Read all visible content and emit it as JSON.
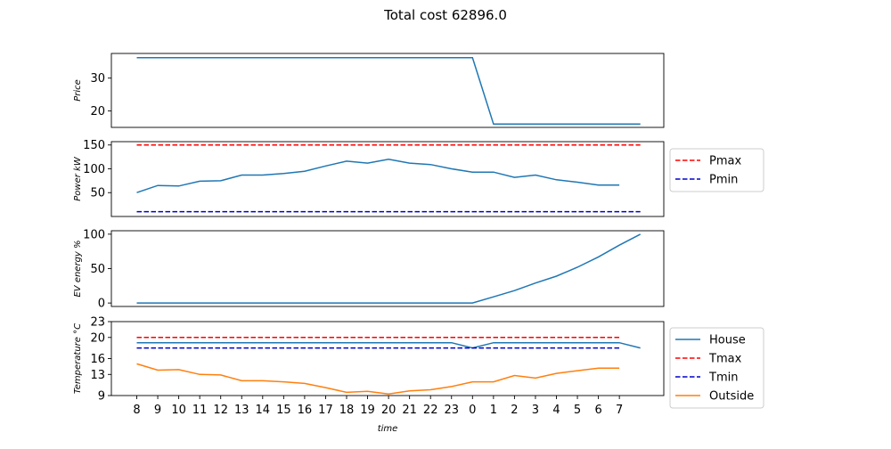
{
  "figure": {
    "suptitle": "Total cost 62896.0",
    "xlabel": "time"
  },
  "x_ticks": [
    "8",
    "9",
    "10",
    "11",
    "12",
    "13",
    "14",
    "15",
    "16",
    "17",
    "18",
    "19",
    "20",
    "21",
    "22",
    "23",
    "0",
    "1",
    "2",
    "3",
    "4",
    "5",
    "6",
    "7"
  ],
  "colors": {
    "blue": "#1f77b4",
    "orange": "#ff7f0e",
    "red_dashed": "#ff0000",
    "blue_dashed": "#0000cc",
    "axes": "#000000"
  },
  "chart_data": [
    {
      "type": "line",
      "id": "price",
      "ylabel": "Price",
      "ylim": [
        15,
        37.5
      ],
      "yticks": [
        20,
        30
      ],
      "series": [
        {
          "color": "#1f77b4",
          "dash": false,
          "values": [
            36.2,
            36.2,
            36.2,
            36.2,
            36.2,
            36.2,
            36.2,
            36.2,
            36.2,
            36.2,
            36.2,
            36.2,
            36.2,
            36.2,
            36.2,
            36.2,
            36.2,
            16,
            16,
            16,
            16,
            16,
            16,
            16,
            16
          ]
        }
      ]
    },
    {
      "type": "line",
      "id": "power",
      "ylabel": "Power   kW",
      "ylim": [
        0,
        157
      ],
      "yticks": [
        50,
        100,
        150
      ],
      "legend": "outside-right",
      "series": [
        {
          "color": "#1f77b4",
          "dash": false,
          "values": [
            50,
            65,
            64,
            74,
            75,
            87,
            87,
            90,
            95,
            106,
            116,
            112,
            120,
            112,
            109,
            100,
            93,
            93,
            82,
            87,
            77,
            72,
            66,
            66
          ]
        },
        {
          "name": "Pmax",
          "color": "#ff0000",
          "dash": true,
          "values": [
            150,
            150,
            150,
            150,
            150,
            150,
            150,
            150,
            150,
            150,
            150,
            150,
            150,
            150,
            150,
            150,
            150,
            150,
            150,
            150,
            150,
            150,
            150,
            150,
            150
          ]
        },
        {
          "name": "Pmin",
          "color": "#0000cc",
          "dash": true,
          "values": [
            10,
            10,
            10,
            10,
            10,
            10,
            10,
            10,
            10,
            10,
            10,
            10,
            10,
            10,
            10,
            10,
            10,
            10,
            10,
            10,
            10,
            10,
            10,
            10,
            10
          ]
        }
      ]
    },
    {
      "type": "line",
      "id": "ev_energy",
      "ylabel": "EV   energy   %",
      "ylim": [
        -5,
        105
      ],
      "yticks": [
        0,
        50,
        100
      ],
      "series": [
        {
          "color": "#1f77b4",
          "dash": false,
          "values": [
            0,
            0,
            0,
            0,
            0,
            0,
            0,
            0,
            0,
            0,
            0,
            0,
            0,
            0,
            0,
            0,
            0,
            9,
            18,
            29,
            39,
            52,
            67,
            84,
            100
          ]
        }
      ]
    },
    {
      "type": "line",
      "id": "temperature",
      "ylabel": "Temperature   °C",
      "ylim": [
        9,
        23
      ],
      "yticks": [
        9,
        13,
        16,
        20,
        23
      ],
      "legend": "outside-right",
      "series": [
        {
          "name": "House",
          "color": "#1f77b4",
          "dash": false,
          "values": [
            19,
            19,
            19,
            19,
            19,
            19,
            19,
            19,
            19,
            19,
            19,
            19,
            19,
            19,
            19,
            19,
            18,
            19,
            19,
            19,
            19,
            19,
            19,
            19,
            18
          ]
        },
        {
          "name": "Tmax",
          "color": "#ff0000",
          "dash": true,
          "values": [
            20,
            20,
            20,
            20,
            20,
            20,
            20,
            20,
            20,
            20,
            20,
            20,
            20,
            20,
            20,
            20,
            20,
            20,
            20,
            20,
            20,
            20,
            20,
            20
          ]
        },
        {
          "name": "Tmin",
          "color": "#0000cc",
          "dash": true,
          "values": [
            18,
            18,
            18,
            18,
            18,
            18,
            18,
            18,
            18,
            18,
            18,
            18,
            18,
            18,
            18,
            18,
            18,
            18,
            18,
            18,
            18,
            18,
            18,
            18
          ]
        },
        {
          "name": "Outside",
          "color": "#ff7f0e",
          "dash": false,
          "values": [
            15,
            13.8,
            13.9,
            13,
            12.9,
            11.8,
            11.8,
            11.6,
            11.3,
            10.5,
            9.6,
            9.8,
            9.3,
            9.9,
            10.1,
            10.7,
            11.6,
            11.6,
            12.8,
            12.3,
            13.2,
            13.7,
            14.2,
            14.2
          ]
        }
      ]
    }
  ]
}
